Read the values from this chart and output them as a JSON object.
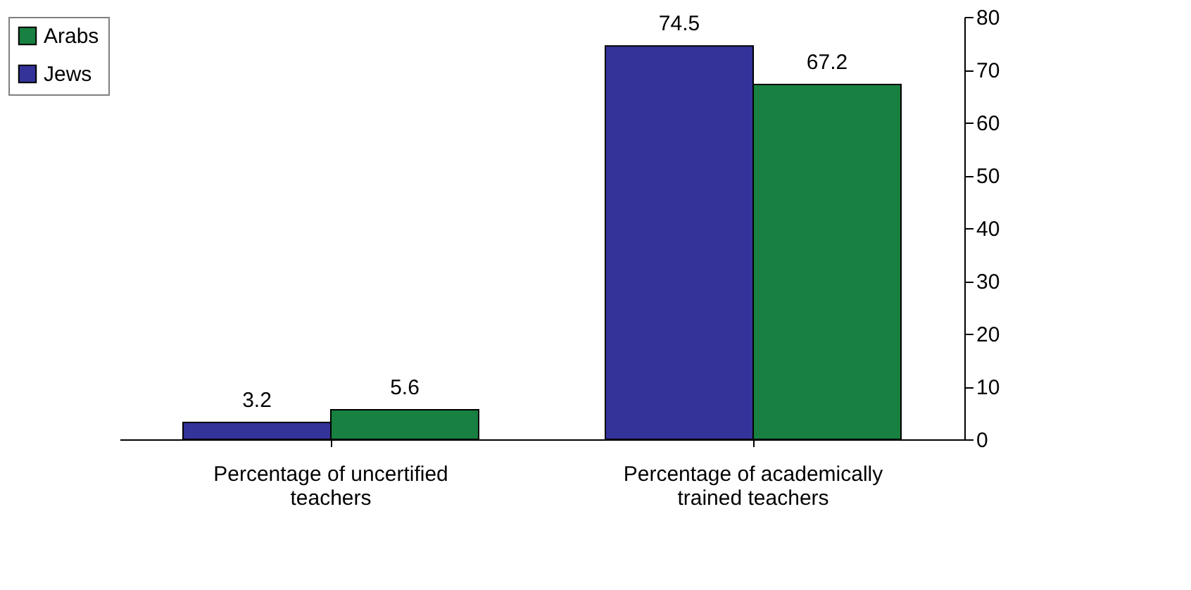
{
  "chart_data": {
    "type": "bar",
    "categories": [
      "Percentage of uncertified teachers",
      "Percentage of academically trained teachers"
    ],
    "series": [
      {
        "name": "Jews",
        "color": "#333399",
        "values": [
          3.2,
          74.5
        ]
      },
      {
        "name": "Arabs",
        "color": "#188040",
        "values": [
          5.6,
          67.2
        ]
      }
    ],
    "ylim": [
      0,
      80
    ],
    "yticks": [
      0,
      10,
      20,
      30,
      40,
      50,
      60,
      70,
      80
    ],
    "data_labels": true,
    "legend": "left",
    "grid": false
  }
}
